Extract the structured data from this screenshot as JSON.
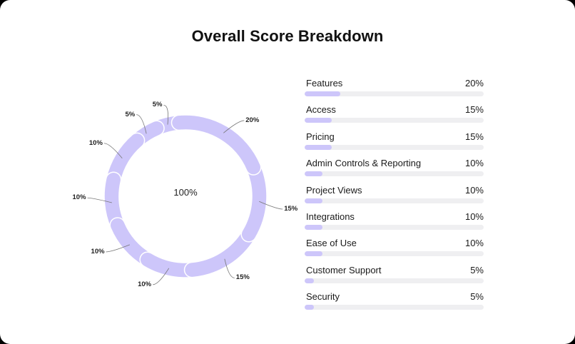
{
  "title": "Overall Score Breakdown",
  "donut": {
    "center_label": "100%",
    "color": "#cdc6fa",
    "separator_color": "#ffffff"
  },
  "breakdown": [
    {
      "name": "Features",
      "value_label": "20%",
      "value": 20
    },
    {
      "name": "Access",
      "value_label": "15%",
      "value": 15
    },
    {
      "name": "Pricing",
      "value_label": "15%",
      "value": 15
    },
    {
      "name": "Admin Controls & Reporting",
      "value_label": "10%",
      "value": 10
    },
    {
      "name": "Project Views",
      "value_label": "10%",
      "value": 10
    },
    {
      "name": "Integrations",
      "value_label": "10%",
      "value": 10
    },
    {
      "name": "Ease of Use",
      "value_label": "10%",
      "value": 10
    },
    {
      "name": "Customer Support",
      "value_label": "5%",
      "value": 5
    },
    {
      "name": "Security",
      "value_label": "5%",
      "value": 5
    }
  ],
  "chart_data": [
    {
      "type": "pie",
      "variant": "donut",
      "title": "Overall Score Breakdown",
      "center_text": "100%",
      "categories": [
        "Features",
        "Access",
        "Pricing",
        "Admin Controls & Reporting",
        "Project Views",
        "Integrations",
        "Ease of Use",
        "Customer Support",
        "Security"
      ],
      "values": [
        20,
        15,
        15,
        10,
        10,
        10,
        10,
        5,
        5
      ],
      "labels": [
        "20%",
        "15%",
        "15%",
        "10%",
        "10%",
        "10%",
        "10%",
        "5%",
        "5%"
      ],
      "color": "#cdc6fa"
    },
    {
      "type": "bar",
      "orientation": "horizontal",
      "categories": [
        "Features",
        "Access",
        "Pricing",
        "Admin Controls & Reporting",
        "Project Views",
        "Integrations",
        "Ease of Use",
        "Customer Support",
        "Security"
      ],
      "values": [
        20,
        15,
        15,
        10,
        10,
        10,
        10,
        5,
        5
      ],
      "xlim": [
        0,
        100
      ],
      "unit": "%",
      "color": "#cdc6fa",
      "track_color": "#efeff1"
    }
  ]
}
